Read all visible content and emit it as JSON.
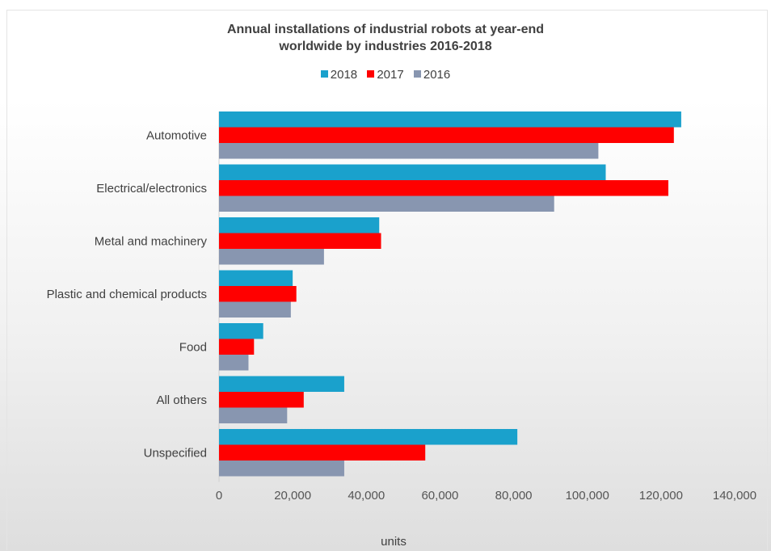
{
  "chart_data": {
    "type": "bar",
    "orientation": "horizontal",
    "title_line1": "Annual installations  of industrial robots at year-end",
    "title_line2": "worldwide  by industries 2016-2018",
    "categories": [
      "Automotive",
      "Electrical/electronics",
      "Metal and machinery",
      "Plastic and chemical products",
      "Food",
      "All others",
      "Unspecified"
    ],
    "series": [
      {
        "name": "2018",
        "color": "#1aa1cc",
        "values": [
          125500,
          105000,
          43500,
          20000,
          12000,
          34000,
          81000
        ]
      },
      {
        "name": "2017",
        "color": "#ff0000",
        "values": [
          123500,
          122000,
          44000,
          21000,
          9500,
          23000,
          56000
        ]
      },
      {
        "name": "2016",
        "color": "#8896b0",
        "values": [
          103000,
          91000,
          28500,
          19500,
          8000,
          18500,
          34000
        ]
      }
    ],
    "xlabel": "units",
    "xlim": [
      0,
      140000
    ],
    "x_ticks": [
      0,
      20000,
      40000,
      60000,
      80000,
      100000,
      120000,
      140000
    ],
    "x_tick_labels": [
      "0",
      "20,000",
      "40,000",
      "60,000",
      "80,000",
      "100,000",
      "120,000",
      "140,000"
    ],
    "legend_position": "top-center",
    "grid": false
  }
}
